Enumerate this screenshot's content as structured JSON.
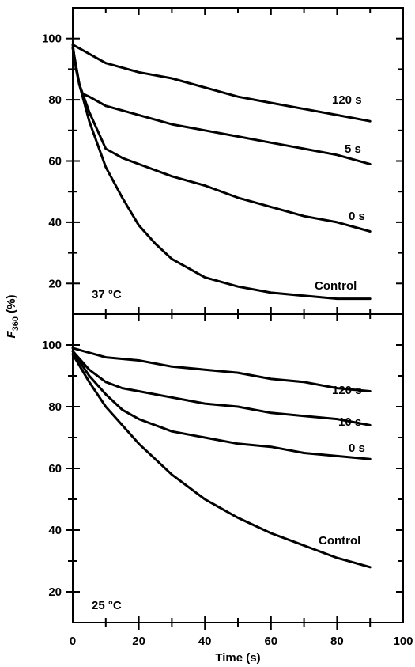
{
  "chart_data": {
    "type": "line",
    "xlabel": "Time (s)",
    "ylabel_main": "F",
    "ylabel_sub": "360",
    "ylabel_unit": " (%)",
    "xlim": [
      0,
      100
    ],
    "xticks": [
      0,
      20,
      40,
      60,
      80,
      100
    ],
    "panels": [
      {
        "temperature_label": "37 °C",
        "ylim": [
          10,
          110
        ],
        "yticks": [
          20,
          40,
          60,
          80,
          100
        ],
        "series": [
          {
            "name": "120 s",
            "x": [
              0,
              5,
              10,
              20,
              30,
              40,
              50,
              60,
              70,
              80,
              90
            ],
            "y": [
              98,
              95,
              92,
              89,
              87,
              84,
              81,
              79,
              77,
              75,
              73
            ]
          },
          {
            "name": "5 s",
            "x": [
              0,
              1,
              2,
              3,
              5,
              10,
              20,
              30,
              40,
              50,
              60,
              70,
              80,
              90
            ],
            "y": [
              98,
              90,
              85,
              82,
              81,
              78,
              75,
              72,
              70,
              68,
              66,
              64,
              62,
              59
            ]
          },
          {
            "name": "0 s",
            "x": [
              0,
              2,
              5,
              10,
              15,
              20,
              30,
              40,
              50,
              60,
              70,
              80,
              90
            ],
            "y": [
              97,
              85,
              76,
              64,
              61,
              59,
              55,
              52,
              48,
              45,
              42,
              40,
              37
            ]
          },
          {
            "name": "Control",
            "x": [
              0,
              2,
              5,
              10,
              15,
              20,
              25,
              30,
              35,
              40,
              50,
              60,
              70,
              80,
              90
            ],
            "y": [
              97,
              85,
              73,
              58,
              48,
              39,
              33,
              28,
              25,
              22,
              19,
              17,
              16,
              15,
              15
            ]
          }
        ]
      },
      {
        "temperature_label": "25 °C",
        "ylim": [
          10,
          110
        ],
        "yticks": [
          20,
          40,
          60,
          80,
          100
        ],
        "series": [
          {
            "name": "120 s",
            "x": [
              0,
              10,
              20,
              30,
              40,
              50,
              60,
              70,
              80,
              90
            ],
            "y": [
              99,
              96,
              95,
              93,
              92,
              91,
              89,
              88,
              86,
              85
            ]
          },
          {
            "name": "10 s",
            "x": [
              0,
              5,
              10,
              15,
              20,
              30,
              40,
              50,
              60,
              70,
              80,
              90
            ],
            "y": [
              98,
              92,
              88,
              86,
              85,
              83,
              81,
              80,
              78,
              77,
              76,
              74
            ]
          },
          {
            "name": "0 s",
            "x": [
              0,
              5,
              10,
              15,
              20,
              30,
              40,
              50,
              60,
              70,
              80,
              90
            ],
            "y": [
              98,
              90,
              84,
              79,
              76,
              72,
              70,
              68,
              67,
              65,
              64,
              63
            ]
          },
          {
            "name": "Control",
            "x": [
              0,
              5,
              10,
              20,
              30,
              40,
              50,
              60,
              70,
              80,
              90
            ],
            "y": [
              97,
              88,
              80,
              68,
              58,
              50,
              44,
              39,
              35,
              31,
              28
            ]
          }
        ]
      }
    ]
  }
}
